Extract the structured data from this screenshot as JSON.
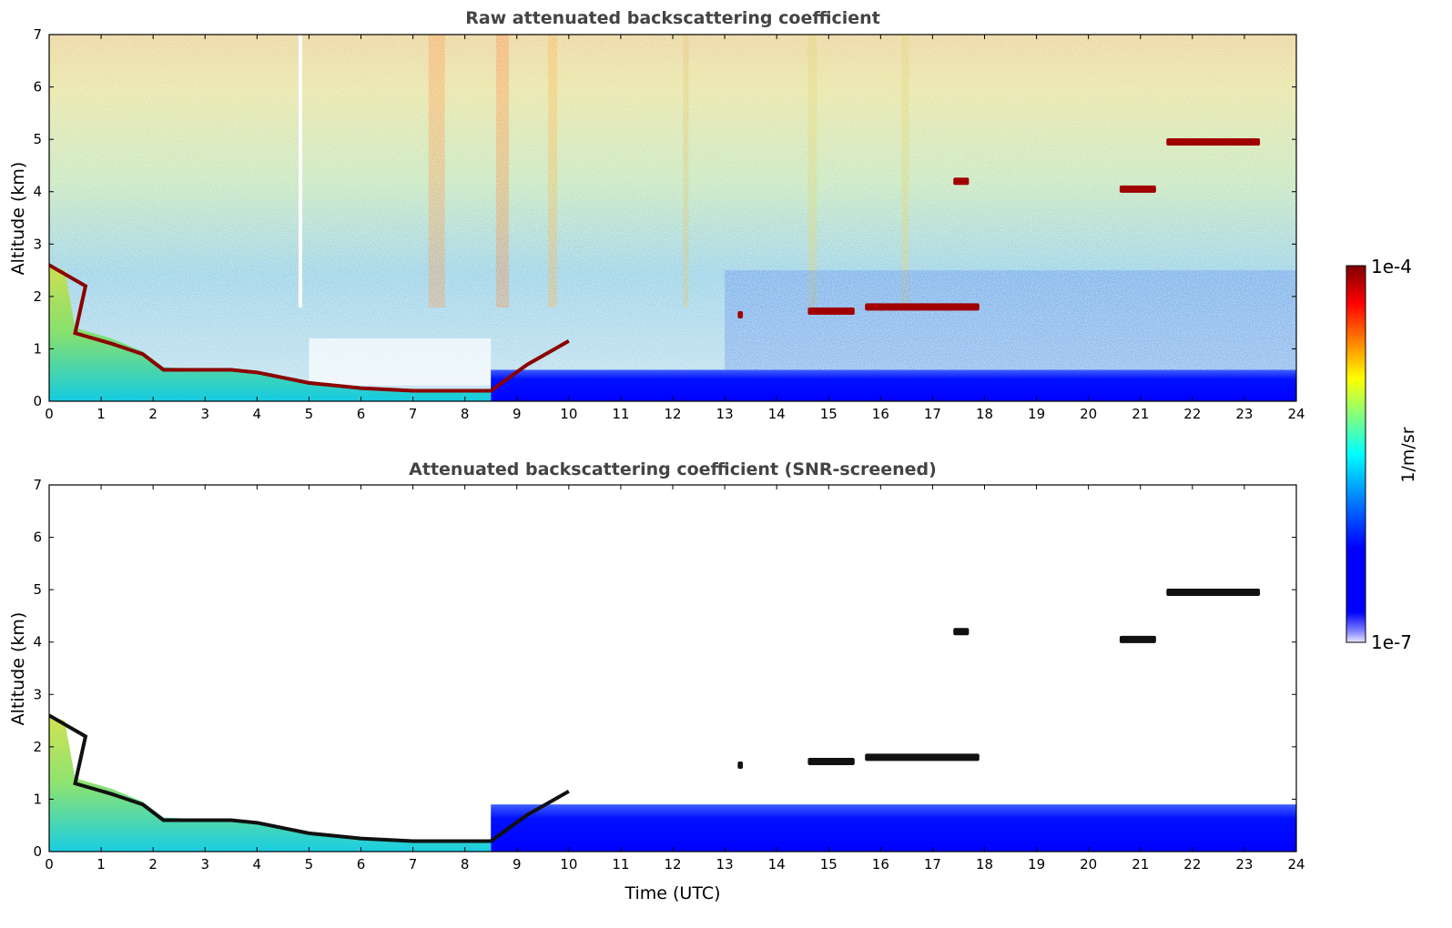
{
  "colors": {
    "jet": [
      "#00008f",
      "#0000ff",
      "#0080ff",
      "#00ffff",
      "#80ff80",
      "#ffff00",
      "#ff8000",
      "#ff0000",
      "#800000"
    ],
    "frame": "#000000",
    "title": "#444444"
  },
  "colorbar": {
    "label": "1/m/sr",
    "top_label": "1e-4",
    "bottom_label": "1e-7",
    "scale": "log",
    "range": [
      1e-07,
      0.0001
    ]
  },
  "chart_data": [
    {
      "type": "heatmap",
      "title": "Raw attenuated backscattering coefficient",
      "xlabel": "",
      "ylabel": "Altitude (km)",
      "xlim": [
        0,
        24
      ],
      "ylim": [
        0,
        7
      ],
      "xticks": [
        "0",
        "1",
        "2",
        "3",
        "4",
        "5",
        "6",
        "7",
        "8",
        "9",
        "10",
        "11",
        "12",
        "13",
        "14",
        "15",
        "16",
        "17",
        "18",
        "19",
        "20",
        "21",
        "22",
        "23",
        "24"
      ],
      "yticks": [
        "0",
        "1",
        "2",
        "3",
        "4",
        "5",
        "6",
        "7"
      ],
      "colorscale": "jet",
      "color_range": [
        1e-07,
        0.0001
      ],
      "features": {
        "boundary_layer_top_km": [
          [
            0,
            2.6
          ],
          [
            0.7,
            2.2
          ],
          [
            0.5,
            1.3
          ],
          [
            1.2,
            1.1
          ],
          [
            1.8,
            0.9
          ],
          [
            2.2,
            0.6
          ],
          [
            3.5,
            0.6
          ],
          [
            4.0,
            0.55
          ],
          [
            5.0,
            0.35
          ],
          [
            6.0,
            0.25
          ],
          [
            7.0,
            0.2
          ],
          [
            8.0,
            0.2
          ],
          [
            8.5,
            0.2
          ],
          [
            9.2,
            0.7
          ],
          [
            10.0,
            1.15
          ]
        ],
        "cloud_layers": [
          {
            "t_start": 14.6,
            "t_end": 15.5,
            "alt_km": 1.72
          },
          {
            "t_start": 15.7,
            "t_end": 17.9,
            "alt_km": 1.8
          },
          {
            "t_start": 17.4,
            "t_end": 17.7,
            "alt_km": 4.2
          },
          {
            "t_start": 20.6,
            "t_end": 21.3,
            "alt_km": 4.05
          },
          {
            "t_start": 21.5,
            "t_end": 23.3,
            "alt_km": 4.95
          },
          {
            "t_start": 13.25,
            "t_end": 13.35,
            "alt_km": 1.65
          }
        ]
      }
    },
    {
      "type": "heatmap",
      "title": "Attenuated backscattering coefficient (SNR-screened)",
      "xlabel": "Time (UTC)",
      "ylabel": "Altitude (km)",
      "xlim": [
        0,
        24
      ],
      "ylim": [
        0,
        7
      ],
      "xticks": [
        "0",
        "1",
        "2",
        "3",
        "4",
        "5",
        "6",
        "7",
        "8",
        "9",
        "10",
        "11",
        "12",
        "13",
        "14",
        "15",
        "16",
        "17",
        "18",
        "19",
        "20",
        "21",
        "22",
        "23",
        "24"
      ],
      "yticks": [
        "0",
        "1",
        "2",
        "3",
        "4",
        "5",
        "6",
        "7"
      ],
      "colorscale": "jet",
      "color_range": [
        1e-07,
        0.0001
      ],
      "screening": "SNR"
    }
  ]
}
